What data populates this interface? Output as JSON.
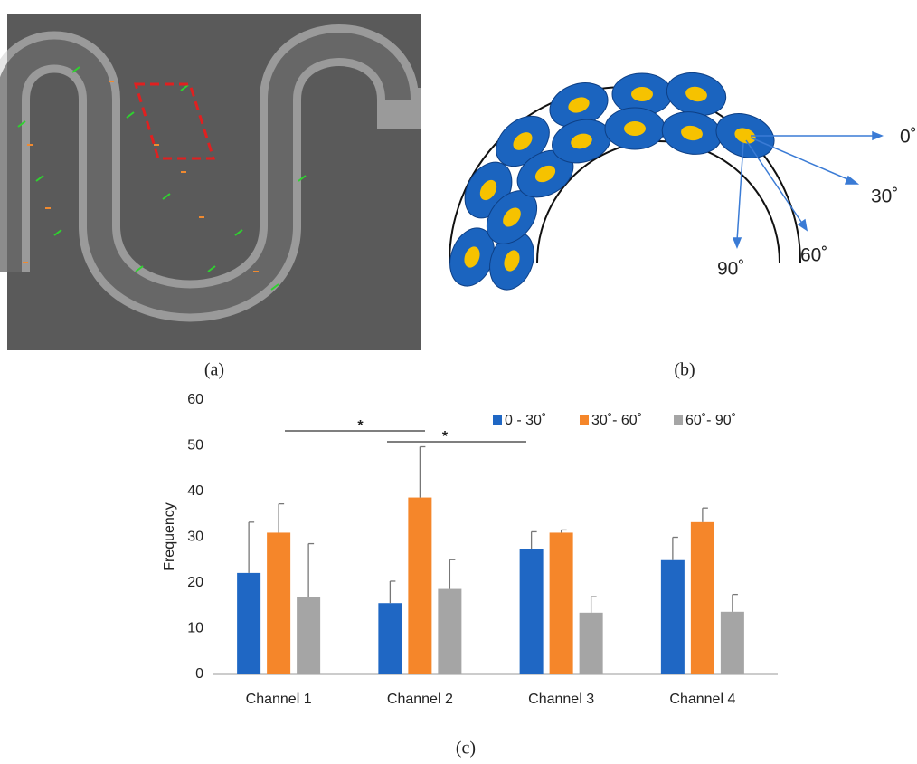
{
  "panels": {
    "a": "(a)",
    "b": "(b)",
    "c": "(c)"
  },
  "diagram": {
    "angles": [
      "0˚",
      "30˚",
      "60˚",
      "90˚"
    ]
  },
  "chart_data": {
    "type": "bar",
    "ylabel": "Frequency",
    "categories": [
      "Channel 1",
      "Channel 2",
      "Channel 3",
      "Channel 4"
    ],
    "series": [
      {
        "name": "0 - 30˚",
        "color": "#1f67c4",
        "values": [
          22.2,
          15.6,
          27.4,
          25
        ],
        "errors": [
          11.1,
          4.8,
          3.8,
          5
        ]
      },
      {
        "name": "30˚- 60˚",
        "color": "#f5862a",
        "values": [
          31,
          38.7,
          31,
          33.3
        ],
        "errors": [
          6.3,
          11.1,
          0.6,
          3.1
        ]
      },
      {
        "name": "60˚- 90˚",
        "color": "#a5a5a5",
        "values": [
          17,
          18.7,
          13.5,
          13.7
        ],
        "errors": [
          11.6,
          6.4,
          3.5,
          3.8
        ]
      }
    ],
    "ylim": [
      0,
      60
    ],
    "yticks": [
      0,
      10,
      20,
      30,
      40,
      50,
      60
    ],
    "annotations": [
      "*",
      "*"
    ]
  }
}
